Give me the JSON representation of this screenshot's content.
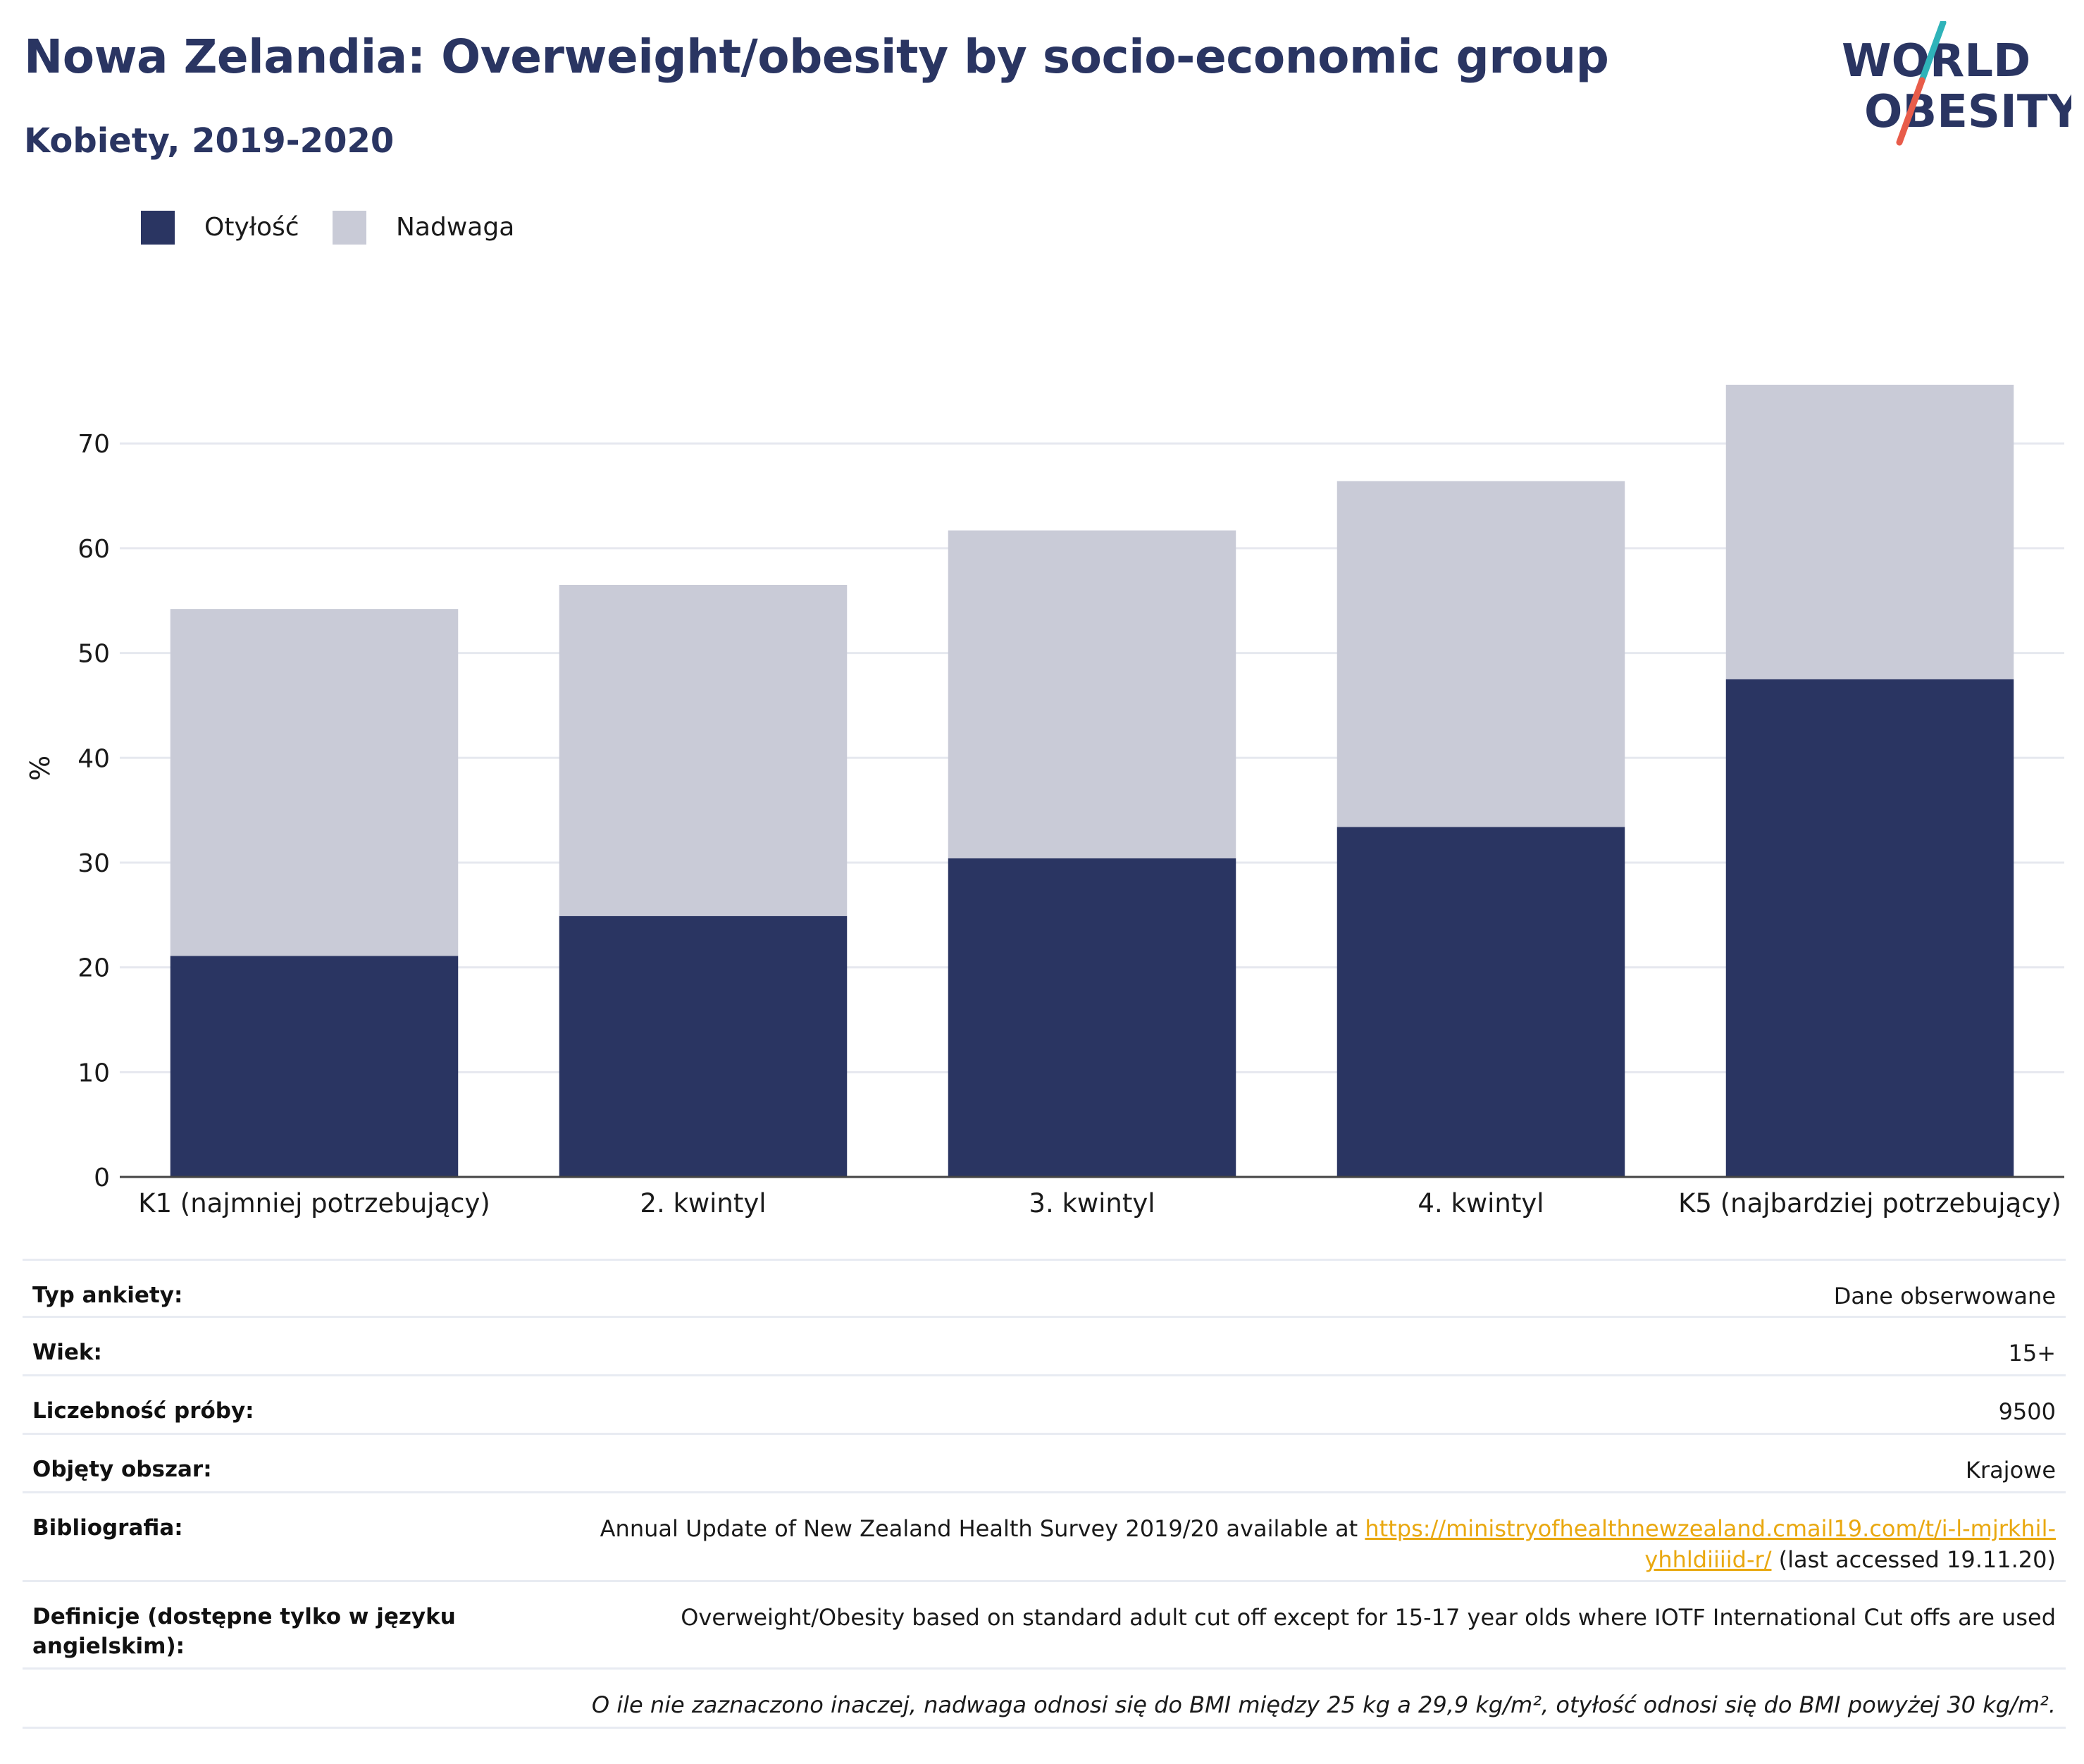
{
  "header": {
    "title": "Nowa Zelandia: Overweight/obesity by socio-economic group",
    "subtitle": "Kobiety, 2019-2020"
  },
  "logo": {
    "line1": "WORLD",
    "line2": "OBESITY",
    "colors": {
      "text": "#2a3562",
      "slash_teal": "#2fb3b9",
      "slash_red": "#e85c4a"
    }
  },
  "colors": {
    "obesity": "#2a3562",
    "overweight": "#c9cbd7",
    "grid": "#e6e8ef",
    "axis": "#444444"
  },
  "chart_data": {
    "type": "bar",
    "stacked": true,
    "title": "Nowa Zelandia: Overweight/obesity by socio-economic group",
    "subtitle": "Kobiety, 2019-2020",
    "xlabel": "",
    "ylabel": "%",
    "ylim": [
      0,
      76
    ],
    "yticks": [
      0,
      10,
      20,
      30,
      40,
      50,
      60,
      70
    ],
    "grid": true,
    "legend_position": "top-left",
    "categories": [
      "K1 (najmniej potrzebujący)",
      "2. kwintyl",
      "3. kwintyl",
      "4. kwintyl",
      "K5 (najbardziej potrzebujący)"
    ],
    "series": [
      {
        "name": "Otyłość",
        "color": "#2a3562",
        "values": [
          21.1,
          24.9,
          30.4,
          33.4,
          47.5
        ]
      },
      {
        "name": "Nadwaga",
        "color": "#c9cbd7",
        "values": [
          33.1,
          31.6,
          31.3,
          33.0,
          28.1
        ]
      }
    ]
  },
  "info": {
    "rows": [
      {
        "label": "Typ ankiety:",
        "value": "Dane obserwowane"
      },
      {
        "label": "Wiek:",
        "value": "15+"
      },
      {
        "label": "Liczebność próby:",
        "value": "9500"
      },
      {
        "label": "Objęty obszar:",
        "value": "Krajowe"
      }
    ],
    "bibliography": {
      "label": "Bibliografia:",
      "text_before": "Annual Update of New Zealand Health Survey 2019/20 available at ",
      "link_line1": "https://ministryofhealthnewzealand.cmail19.com/t/i-l-mjrkhil-",
      "link_line2": "yhhldiiiid-r/",
      "text_after": " (last accessed 19.11.20)"
    },
    "definitions": {
      "label": "Definicje (dostępne tylko w języku angielskim):",
      "value": "Overweight/Obesity based on standard adult cut off except for 15-17 year olds where IOTF International Cut offs are used"
    },
    "note": "O ile nie zaznaczono inaczej, nadwaga odnosi się do BMI między 25 kg a 29,9 kg/m², otyłość odnosi się do BMI powyżej 30 kg/m²."
  }
}
